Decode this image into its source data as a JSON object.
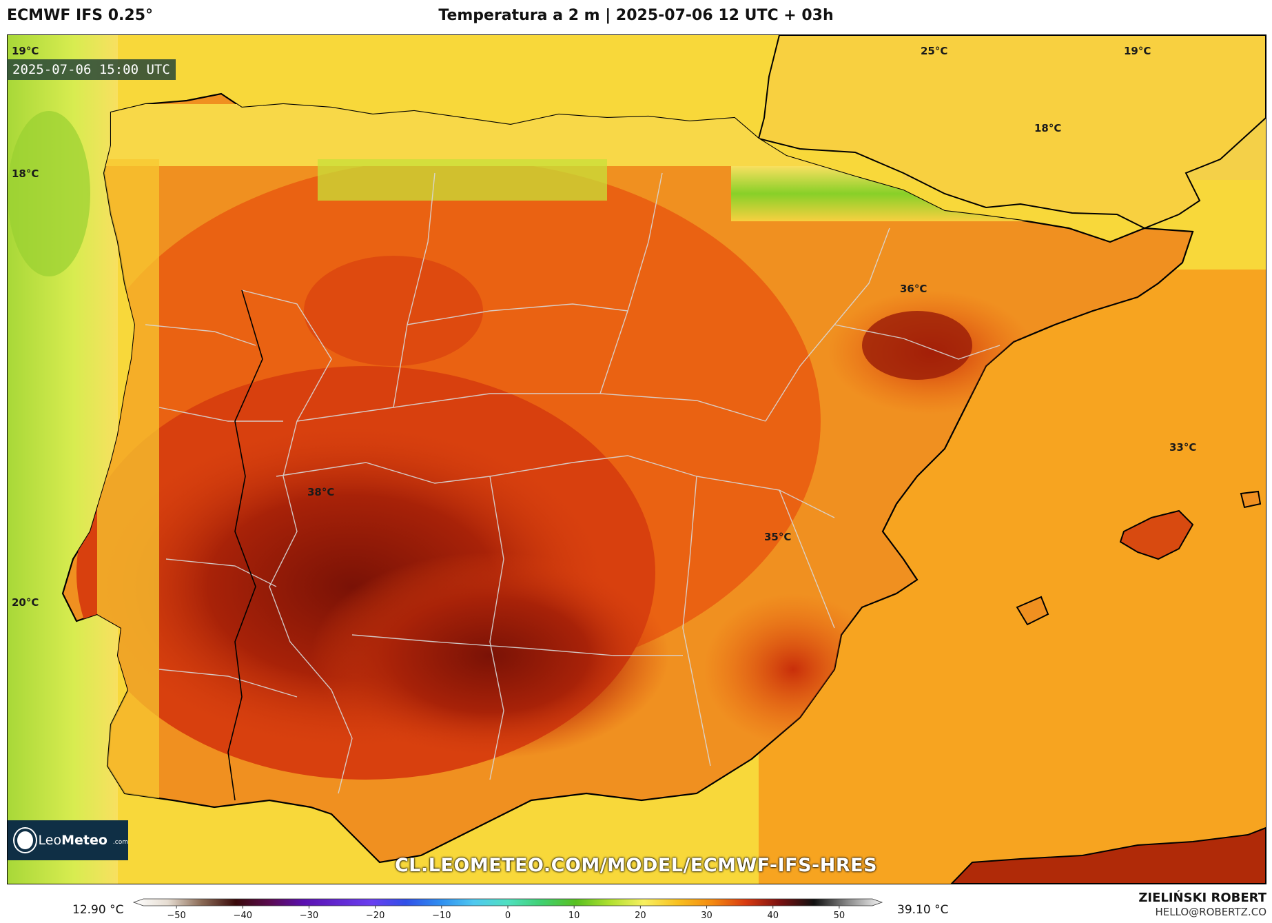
{
  "header": {
    "model": "ECMWF IFS 0.25°",
    "title": "Temperatura a 2 m | 2025-07-06 12 UTC + 03h"
  },
  "map": {
    "valid_time": "2025-07-06 15:00 UTC",
    "labels": [
      {
        "id": "t19-nw",
        "text": "19°C"
      },
      {
        "id": "t25-n",
        "text": "25°C"
      },
      {
        "id": "t19-ne",
        "text": "19°C"
      },
      {
        "id": "t18-w",
        "text": "18°C"
      },
      {
        "id": "t18-pyr",
        "text": "18°C"
      },
      {
        "id": "t36-ebro",
        "text": "36°C"
      },
      {
        "id": "t33-mallorca",
        "text": "33°C"
      },
      {
        "id": "t38-extr",
        "text": "38°C"
      },
      {
        "id": "t35-murcia",
        "text": "35°C"
      },
      {
        "id": "t20-sw",
        "text": "20°C"
      }
    ]
  },
  "branding": {
    "logo_text_light": "Leo",
    "logo_text_bold": "Meteo",
    "logo_domain": ".com",
    "url": "CL.LEOMETEO.COM/MODEL/ECMWF-IFS-HRES",
    "author": "ZIELIŃSKI ROBERT",
    "email": "HELLO@ROBERTZ.CO"
  },
  "legend": {
    "min_label": "12.90 °C",
    "max_label": "39.10 °C",
    "ticks": [
      "−50",
      "−40",
      "−30",
      "−20",
      "−10",
      "0",
      "10",
      "20",
      "30",
      "40",
      "50"
    ],
    "tick_values": [
      -50,
      -40,
      -30,
      -20,
      -10,
      0,
      10,
      20,
      30,
      40,
      50
    ],
    "range": [
      -55,
      55
    ],
    "stops": [
      {
        "v": -55,
        "c": "#ffffff"
      },
      {
        "v": -50,
        "c": "#e6ddd2"
      },
      {
        "v": -45,
        "c": "#8a6a55"
      },
      {
        "v": -40,
        "c": "#3a0a0a"
      },
      {
        "v": -35,
        "c": "#5a0a50"
      },
      {
        "v": -30,
        "c": "#5a10b0"
      },
      {
        "v": -20,
        "c": "#6a3ff0"
      },
      {
        "v": -15,
        "c": "#3050e8"
      },
      {
        "v": -10,
        "c": "#2f8df0"
      },
      {
        "v": -5,
        "c": "#4fc8f0"
      },
      {
        "v": 0,
        "c": "#50e0c0"
      },
      {
        "v": 5,
        "c": "#40d070"
      },
      {
        "v": 10,
        "c": "#58c020"
      },
      {
        "v": 15,
        "c": "#b0e030"
      },
      {
        "v": 20,
        "c": "#f8f060"
      },
      {
        "v": 25,
        "c": "#f8c020"
      },
      {
        "v": 30,
        "c": "#f48a10"
      },
      {
        "v": 35,
        "c": "#d83a10"
      },
      {
        "v": 40,
        "c": "#7a1010"
      },
      {
        "v": 45,
        "c": "#101010"
      },
      {
        "v": 50,
        "c": "#8a8a8a"
      },
      {
        "v": 55,
        "c": "#f4f4f4"
      }
    ]
  },
  "colors": {
    "sea_cool": "#b8dc44",
    "land_hot": "#e85a10",
    "land_extreme": "#8a1a08",
    "med_sea": "#f7a420",
    "coast": "#000000",
    "borders": "#d0d0d0"
  }
}
